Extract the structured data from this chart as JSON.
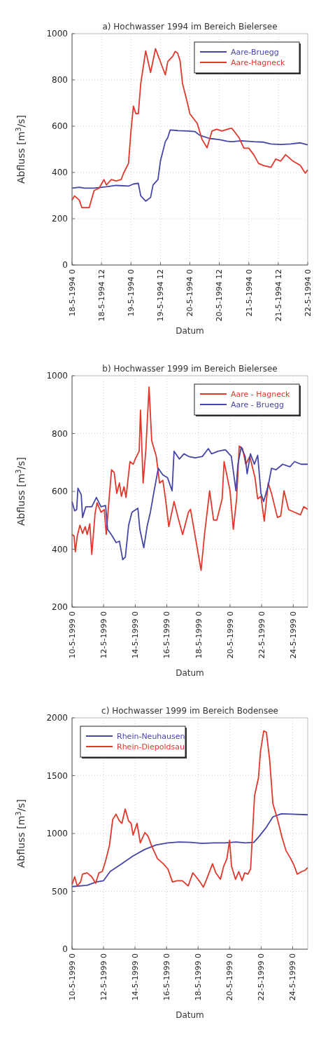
{
  "chart_data": [
    {
      "type": "line",
      "title": "a) Hochwasser 1994 im Bereich Bielersee",
      "xlabel": "Datum",
      "ylabel": "Abfluss [m$^{3}$/s]",
      "xlim": [
        "1994-05-18T00:00",
        "1994-05-22T00:00"
      ],
      "xticks": [
        {
          "value": "1994-05-18T00:00",
          "label": "18-5-1994 0"
        },
        {
          "value": "1994-05-18T12:00",
          "label": "18-5-1994 12"
        },
        {
          "value": "1994-05-19T00:00",
          "label": "19-5-1994 0"
        },
        {
          "value": "1994-05-19T12:00",
          "label": "19-5-1994 12"
        },
        {
          "value": "1994-05-20T00:00",
          "label": "20-5-1994 0"
        },
        {
          "value": "1994-05-20T12:00",
          "label": "20-5-1994 12"
        },
        {
          "value": "1994-05-21T00:00",
          "label": "21-5-1994 0"
        },
        {
          "value": "1994-05-21T12:00",
          "label": "21-5-1994 12"
        },
        {
          "value": "1994-05-22T00:00",
          "label": "22-5-1994 0"
        }
      ],
      "ylim": [
        0,
        1000
      ],
      "yticks": [
        0,
        200,
        400,
        600,
        800,
        1000
      ],
      "grid": true,
      "legend": "top right",
      "line_style": "solid",
      "series": [
        {
          "name": "Aare-Bruegg",
          "color": "#4646a8",
          "x": [
            "1994-05-18T00:00",
            "1994-05-18T03:00",
            "1994-05-18T05:00",
            "1994-05-18T09:00",
            "1994-05-18T14:00",
            "1994-05-18T18:00",
            "1994-05-18T23:00",
            "1994-05-19T01:00",
            "1994-05-19T03:00",
            "1994-05-19T04:00",
            "1994-05-19T06:00",
            "1994-05-19T08:00",
            "1994-05-19T09:00",
            "1994-05-19T11:00",
            "1994-05-19T12:00",
            "1994-05-19T14:00",
            "1994-05-19T15:00",
            "1994-05-19T16:00",
            "1994-05-19T19:00",
            "1994-05-19T23:00",
            "1994-05-20T02:00",
            "1994-05-20T04:00",
            "1994-05-20T08:00",
            "1994-05-20T12:00",
            "1994-05-20T15:00",
            "1994-05-20T17:00",
            "1994-05-20T21:00",
            "1994-05-21T02:00",
            "1994-05-21T06:00",
            "1994-05-21T09:00",
            "1994-05-21T13:00",
            "1994-05-21T17:00",
            "1994-05-21T21:00",
            "1994-05-22T00:00"
          ],
          "values": [
            332,
            336,
            332,
            332,
            338,
            344,
            341,
            350,
            353,
            299,
            276,
            292,
            346,
            369,
            449,
            533,
            551,
            584,
            581,
            579,
            577,
            561,
            547,
            542,
            535,
            533,
            537,
            533,
            531,
            523,
            521,
            523,
            528,
            519
          ]
        },
        {
          "name": "Aare-Hagneck",
          "color": "#e0392b",
          "x": [
            "1994-05-18T00:00",
            "1994-05-18T01:00",
            "1994-05-18T03:00",
            "1994-05-18T04:00",
            "1994-05-18T07:00",
            "1994-05-18T09:00",
            "1994-05-18T11:00",
            "1994-05-18T13:00",
            "1994-05-18T14:00",
            "1994-05-18T16:00",
            "1994-05-18T18:00",
            "1994-05-18T20:00",
            "1994-05-18T21:00",
            "1994-05-18T23:00",
            "1994-05-19T00:00",
            "1994-05-19T01:00",
            "1994-05-19T02:00",
            "1994-05-19T03:00",
            "1994-05-19T04:00",
            "1994-05-19T06:00",
            "1994-05-19T08:00",
            "1994-05-19T10:00",
            "1994-05-19T14:00",
            "1994-05-19T15:00",
            "1994-05-19T17:00",
            "1994-05-19T18:00",
            "1994-05-19T19:00",
            "1994-05-19T20:00",
            "1994-05-19T21:00",
            "1994-05-19T23:00",
            "1994-05-20T00:00",
            "1994-05-20T02:00",
            "1994-05-20T03:00",
            "1994-05-20T05:00",
            "1994-05-20T07:00",
            "1994-05-20T09:00",
            "1994-05-20T11:00",
            "1994-05-20T13:00",
            "1994-05-20T16:00",
            "1994-05-20T17:00",
            "1994-05-20T18:00",
            "1994-05-20T20:00",
            "1994-05-20T22:00",
            "1994-05-21T00:00",
            "1994-05-21T02:00",
            "1994-05-21T04:00",
            "1994-05-21T06:00",
            "1994-05-21T09:00",
            "1994-05-21T11:00",
            "1994-05-21T13:00",
            "1994-05-21T15:00",
            "1994-05-21T18:00",
            "1994-05-21T21:00",
            "1994-05-21T23:00",
            "1994-05-22T00:00"
          ],
          "values": [
            280,
            299,
            280,
            248,
            248,
            322,
            332,
            369,
            346,
            369,
            363,
            369,
            397,
            439,
            579,
            687,
            654,
            654,
            785,
            925,
            832,
            935,
            822,
            879,
            902,
            923,
            916,
            883,
            785,
            701,
            654,
            626,
            612,
            542,
            507,
            579,
            587,
            579,
            589,
            591,
            579,
            551,
            505,
            505,
            477,
            439,
            430,
            422,
            458,
            449,
            477,
            449,
            430,
            397,
            411
          ]
        }
      ]
    },
    {
      "type": "line",
      "title": "b) Hochwasser 1999 im Bereich Bielersee",
      "xlabel": "Datum",
      "ylabel": "Abfluss [m$^{3}$/s]",
      "xlim": [
        "1999-05-10T00:00",
        "1999-05-24T22:00"
      ],
      "xticks": [
        {
          "value": "1999-05-10T00:00",
          "label": "10-5-1999 0"
        },
        {
          "value": "1999-05-12T00:00",
          "label": "12-5-1999 0"
        },
        {
          "value": "1999-05-14T00:00",
          "label": "14-5-1999 0"
        },
        {
          "value": "1999-05-16T00:00",
          "label": "16-5-1999 0"
        },
        {
          "value": "1999-05-18T00:00",
          "label": "18-5-1999 0"
        },
        {
          "value": "1999-05-20T00:00",
          "label": "20-5-1999 0"
        },
        {
          "value": "1999-05-22T00:00",
          "label": "22-5-1999 0"
        },
        {
          "value": "1999-05-24T00:00",
          "label": "24-5-1999 0"
        }
      ],
      "ylim": [
        200,
        1000
      ],
      "yticks": [
        200,
        400,
        600,
        800,
        1000
      ],
      "grid": true,
      "legend": "top right",
      "line_style": "solid",
      "series": [
        {
          "name": "Aare - Hagneck",
          "color": "#e0392b",
          "x": [
            "1999-05-10T00:00",
            "1999-05-10T03:00",
            "1999-05-10T05:00",
            "1999-05-10T08:00",
            "1999-05-10T12:00",
            "1999-05-10T16:00",
            "1999-05-10T20:00",
            "1999-05-10T23:00",
            "1999-05-11T03:00",
            "1999-05-11T06:00",
            "1999-05-11T11:00",
            "1999-05-11T14:00",
            "1999-05-11T20:00",
            "1999-05-12T01:00",
            "1999-05-12T04:00",
            "1999-05-12T08:00",
            "1999-05-12T12:00",
            "1999-05-12T16:00",
            "1999-05-12T20:00",
            "1999-05-13T00:00",
            "1999-05-13T03:00",
            "1999-05-13T07:00",
            "1999-05-13T10:00",
            "1999-05-13T16:00",
            "1999-05-13T21:00",
            "1999-05-14T00:00",
            "1999-05-14T06:00",
            "1999-05-14T08:00",
            "1999-05-14T12:00",
            "1999-05-14T16:00",
            "1999-05-14T21:00",
            "1999-05-15T01:00",
            "1999-05-15T08:00",
            "1999-05-15T13:00",
            "1999-05-15T18:00",
            "1999-05-15T22:00",
            "1999-05-16T03:00",
            "1999-05-16T11:00",
            "1999-05-16T17:00",
            "1999-05-17T00:00",
            "1999-05-17T09:00",
            "1999-05-17T12:00",
            "1999-05-17T19:00",
            "1999-05-18T04:00",
            "1999-05-18T09:00",
            "1999-05-18T17:00",
            "1999-05-18T23:00",
            "1999-05-19T04:00",
            "1999-05-19T12:00",
            "1999-05-19T15:00",
            "1999-05-19T20:00",
            "1999-05-20T00:00",
            "1999-05-20T05:00",
            "1999-05-20T10:00",
            "1999-05-20T14:00",
            "1999-05-20T19:00",
            "1999-05-21T00:00",
            "1999-05-21T06:00",
            "1999-05-21T14:00",
            "1999-05-21T18:00",
            "1999-05-21T23:00",
            "1999-05-22T04:00",
            "1999-05-22T10:00",
            "1999-05-22T15:00",
            "1999-05-23T00:00",
            "1999-05-23T05:00",
            "1999-05-23T10:00",
            "1999-05-23T17:00",
            "1999-05-24T02:00",
            "1999-05-24T11:00",
            "1999-05-24T16:00",
            "1999-05-24T22:00"
          ],
          "values": [
            451,
            446,
            391,
            446,
            483,
            455,
            478,
            451,
            488,
            382,
            524,
            561,
            528,
            537,
            451,
            565,
            675,
            666,
            593,
            629,
            583,
            616,
            579,
            703,
            694,
            712,
            739,
            881,
            629,
            739,
            961,
            776,
            721,
            629,
            638,
            574,
            478,
            565,
            510,
            451,
            529,
            538,
            446,
            327,
            446,
            602,
            501,
            501,
            574,
            703,
            647,
            602,
            469,
            574,
            757,
            748,
            694,
            721,
            647,
            574,
            583,
            497,
            629,
            593,
            510,
            515,
            602,
            537,
            528,
            519,
            547,
            538
          ]
        },
        {
          "name": "Aare - Bruegg",
          "color": "#4646a8",
          "x": [
            "1999-05-10T00:00",
            "1999-05-10T04:00",
            "1999-05-10T07:00",
            "1999-05-10T09:00",
            "1999-05-10T14:00",
            "1999-05-10T16:00",
            "1999-05-10T21:00",
            "1999-05-11T06:00",
            "1999-05-11T13:00",
            "1999-05-11T20:00",
            "1999-05-12T03:00",
            "1999-05-12T06:00",
            "1999-05-12T13:00",
            "1999-05-12T19:00",
            "1999-05-13T00:00",
            "1999-05-13T05:00",
            "1999-05-13T09:00",
            "1999-05-13T14:00",
            "1999-05-13T19:00",
            "1999-05-14T04:00",
            "1999-05-14T07:00",
            "1999-05-14T13:00",
            "1999-05-14T18:00",
            "1999-05-14T23:00",
            "1999-05-15T04:00",
            "1999-05-15T11:00",
            "1999-05-15T18:00",
            "1999-05-16T01:00",
            "1999-05-16T08:00",
            "1999-05-16T11:00",
            "1999-05-16T19:00",
            "1999-05-17T02:00",
            "1999-05-17T09:00",
            "1999-05-17T19:00",
            "1999-05-18T06:00",
            "1999-05-18T15:00",
            "1999-05-18T20:00",
            "1999-05-19T06:00",
            "1999-05-19T17:00",
            "1999-05-20T02:00",
            "1999-05-20T09:00",
            "1999-05-20T12:00",
            "1999-05-20T17:00",
            "1999-05-20T23:00",
            "1999-05-21T02:00",
            "1999-05-21T07:00",
            "1999-05-21T13:00",
            "1999-05-21T18:00",
            "1999-05-21T23:00",
            "1999-05-22T03:00",
            "1999-05-22T10:00",
            "1999-05-22T15:00",
            "1999-05-22T22:00",
            "1999-05-23T08:00",
            "1999-05-23T19:00",
            "1999-05-24T02:00",
            "1999-05-24T12:00",
            "1999-05-24T22:00"
          ],
          "values": [
            565,
            533,
            537,
            611,
            588,
            510,
            547,
            547,
            579,
            547,
            551,
            469,
            446,
            423,
            428,
            364,
            373,
            483,
            528,
            542,
            469,
            405,
            478,
            528,
            593,
            680,
            657,
            648,
            602,
            739,
            712,
            730,
            721,
            716,
            721,
            748,
            730,
            739,
            744,
            721,
            602,
            694,
            753,
            721,
            661,
            730,
            694,
            725,
            593,
            565,
            620,
            680,
            675,
            694,
            685,
            703,
            694,
            694
          ]
        }
      ]
    },
    {
      "type": "line",
      "title": "c) Hochwasser 1999 im Bereich Bodensee",
      "xlabel": "Datum",
      "ylabel": "Abfluss [m$^{3}$/s]",
      "xlim": [
        "1999-05-10T00:00",
        "1999-05-24T23:00"
      ],
      "xticks": [
        {
          "value": "1999-05-10T00:00",
          "label": "10-5-1999 0"
        },
        {
          "value": "1999-05-12T00:00",
          "label": "12-5-1999 0"
        },
        {
          "value": "1999-05-14T00:00",
          "label": "14-5-1999 0"
        },
        {
          "value": "1999-05-16T00:00",
          "label": "16-5-1999 0"
        },
        {
          "value": "1999-05-18T00:00",
          "label": "18-5-1999 0"
        },
        {
          "value": "1999-05-20T00:00",
          "label": "20-5-1999 0"
        },
        {
          "value": "1999-05-22T00:00",
          "label": "22-5-1999 0"
        },
        {
          "value": "1999-05-24T00:00",
          "label": "24-5-1999 0"
        }
      ],
      "ylim": [
        0,
        2000
      ],
      "yticks": [
        0,
        500,
        1000,
        1500,
        2000
      ],
      "grid": true,
      "legend": "top left",
      "line_style": "solid",
      "series": [
        {
          "name": "Rhein-Neuhausen",
          "color": "#4646a8",
          "x": [
            "1999-05-10T00:00",
            "1999-05-10T23:00",
            "1999-05-11T13:00",
            "1999-05-12T00:00",
            "1999-05-12T10:00",
            "1999-05-13T04:00",
            "1999-05-13T21:00",
            "1999-05-14T15:00",
            "1999-05-15T08:00",
            "1999-05-16T02:00",
            "1999-05-16T19:00",
            "1999-05-17T13:00",
            "1999-05-18T06:00",
            "1999-05-19T00:00",
            "1999-05-19T17:00",
            "1999-05-20T10:00",
            "1999-05-21T00:00",
            "1999-05-21T13:00",
            "1999-05-21T21:00",
            "1999-05-22T08:00",
            "1999-05-22T18:00",
            "1999-05-23T07:00",
            "1999-05-23T22:00",
            "1999-05-24T23:00"
          ],
          "values": [
            541,
            552,
            581,
            592,
            671,
            739,
            806,
            863,
            901,
            919,
            926,
            923,
            914,
            919,
            919,
            926,
            919,
            923,
            975,
            1054,
            1144,
            1171,
            1167,
            1162
          ]
        },
        {
          "name": "Rhein-Diepoldsau",
          "color": "#e0392b",
          "x": [
            "1999-05-10T00:00",
            "1999-05-10T04:00",
            "1999-05-10T08:00",
            "1999-05-10T13:00",
            "1999-05-10T16:00",
            "1999-05-10T23:00",
            "1999-05-11T06:00",
            "1999-05-11T12:00",
            "1999-05-11T17:00",
            "1999-05-11T22:00",
            "1999-05-12T03:00",
            "1999-05-12T09:00",
            "1999-05-12T14:00",
            "1999-05-12T19:00",
            "1999-05-13T00:00",
            "1999-05-13T04:00",
            "1999-05-13T09:00",
            "1999-05-13T14:00",
            "1999-05-13T18:00",
            "1999-05-13T21:00",
            "1999-05-14T03:00",
            "1999-05-14T08:00",
            "1999-05-14T15:00",
            "1999-05-14T20:00",
            "1999-05-15T01:00",
            "1999-05-15T10:00",
            "1999-05-15T19:00",
            "1999-05-16T02:00",
            "1999-05-16T09:00",
            "1999-05-16T16:00",
            "1999-05-17T00:00",
            "1999-05-17T09:00",
            "1999-05-17T16:00",
            "1999-05-17T21:00",
            "1999-05-18T03:00",
            "1999-05-18T08:00",
            "1999-05-18T13:00",
            "1999-05-18T22:00",
            "1999-05-19T03:00",
            "1999-05-19T10:00",
            "1999-05-19T15:00",
            "1999-05-19T20:00",
            "1999-05-20T00:00",
            "1999-05-20T03:00",
            "1999-05-20T09:00",
            "1999-05-20T14:00",
            "1999-05-20T19:00",
            "1999-05-20T23:00",
            "1999-05-21T04:00",
            "1999-05-21T08:00",
            "1999-05-21T14:00",
            "1999-05-21T20:00",
            "1999-05-21T23:00",
            "1999-05-22T04:00",
            "1999-05-22T08:00",
            "1999-05-22T13:00",
            "1999-05-22T18:00",
            "1999-05-23T01:00",
            "1999-05-23T08:00",
            "1999-05-23T14:00",
            "1999-05-23T21:00",
            "1999-05-24T02:00",
            "1999-05-24T07:00",
            "1999-05-24T14:00",
            "1999-05-24T19:00",
            "1999-05-24T23:00"
          ],
          "values": [
            559,
            626,
            547,
            581,
            649,
            660,
            626,
            570,
            660,
            671,
            761,
            896,
            1122,
            1167,
            1110,
            1088,
            1212,
            1110,
            1088,
            986,
            1088,
            919,
            1009,
            975,
            896,
            784,
            739,
            694,
            581,
            592,
            592,
            547,
            660,
            626,
            581,
            536,
            604,
            739,
            660,
            604,
            716,
            784,
            941,
            716,
            604,
            671,
            592,
            660,
            649,
            694,
            1324,
            1482,
            1707,
            1887,
            1876,
            1640,
            1257,
            1122,
            964,
            851,
            784,
            727,
            649,
            671,
            682,
            705
          ]
        }
      ]
    }
  ]
}
